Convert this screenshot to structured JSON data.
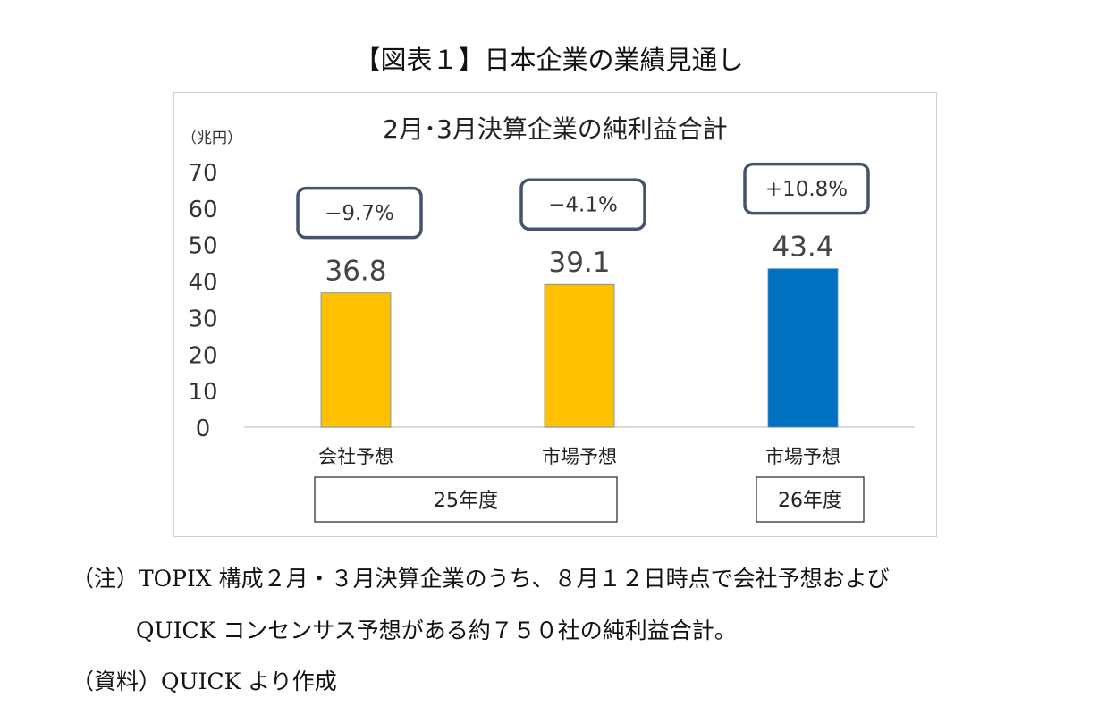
{
  "figure_title": "【図表１】日本企業の業績見通し",
  "chart_data": {
    "type": "bar",
    "title": "2月･3月決算企業の純利益合計",
    "unit_label": "（兆円）",
    "ylim": [
      0,
      70
    ],
    "yticks": [
      "0",
      "10",
      "20",
      "30",
      "40",
      "50",
      "60",
      "70"
    ],
    "grid": false,
    "categories": [
      "会社予想",
      "市場予想",
      "市場予想"
    ],
    "values": [
      36.8,
      39.1,
      43.4
    ],
    "value_labels": [
      "36.8",
      "39.1",
      "43.4"
    ],
    "change_labels": [
      "−9.7%",
      "−4.1%",
      "+10.8%"
    ],
    "bar_colors": [
      "#FFC000",
      "#FFC000",
      "#0070C0"
    ],
    "annotation_border_color": "#44546A",
    "year_groups": [
      {
        "label": "25年度",
        "bars": [
          0,
          1
        ]
      },
      {
        "label": "26年度",
        "bars": [
          2
        ]
      }
    ]
  },
  "notes": {
    "note_line1": "（注）TOPIX 構成２月・３月決算企業のうち、８月１２日時点で会社予想および",
    "note_line2": "QUICK コンセンサス予想がある約７５０社の純利益合計。",
    "source": "（資料）QUICK より作成"
  }
}
